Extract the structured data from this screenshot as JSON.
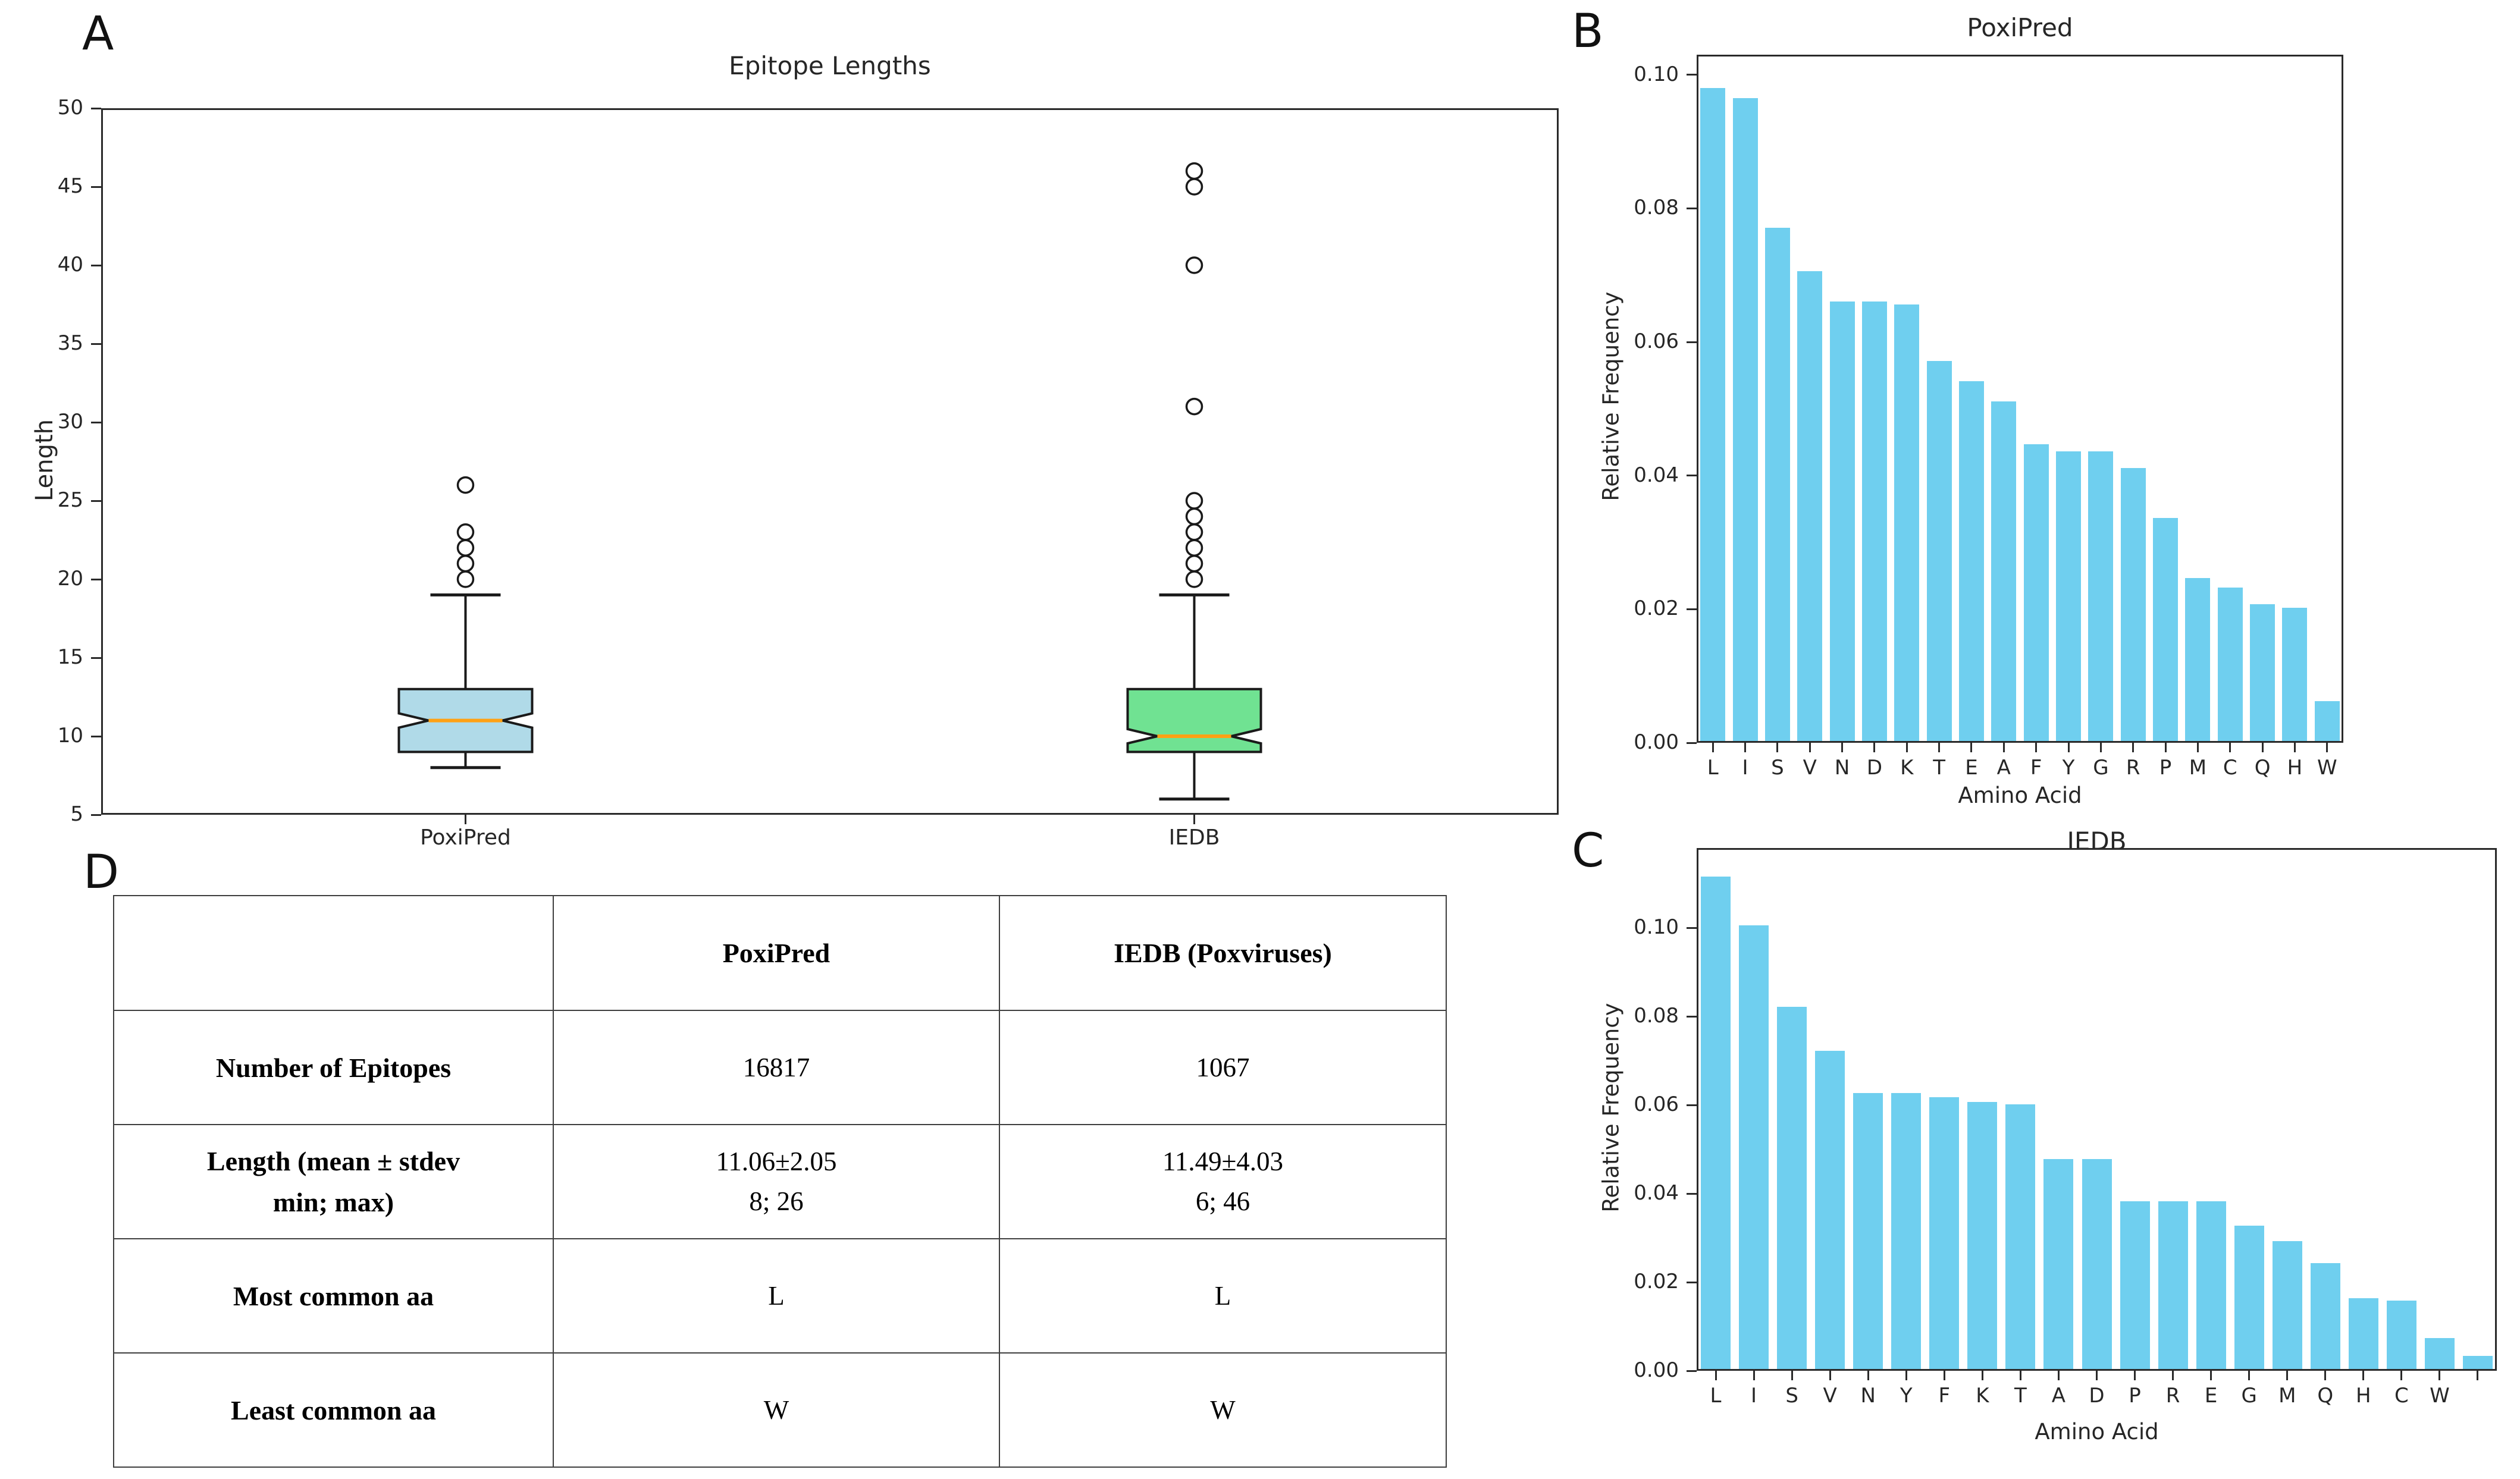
{
  "figure": {
    "background": "#ffffff"
  },
  "panel_labels": {
    "a": "A",
    "b": "B",
    "c": "C",
    "d": "D"
  },
  "chart_data": [
    {
      "id": "A",
      "type": "boxplot",
      "title": "Epitope Lengths",
      "xlabel": "",
      "ylabel": "Length",
      "ylim": [
        5,
        50
      ],
      "ytick_labels": [
        "5",
        "10",
        "15",
        "20",
        "25",
        "30",
        "35",
        "40",
        "45",
        "50"
      ],
      "grid": false,
      "legend": "none",
      "categories": [
        "PoxiPred",
        "IEDB"
      ],
      "median_color": "#FFA114",
      "edge_color": "#1a1a1a",
      "series": [
        {
          "name": "PoxiPred",
          "box_color": "#B0DAE8",
          "whisker_low": 8,
          "q1": 9,
          "median": 11,
          "q3": 13,
          "whisker_high": 19,
          "outliers": [
            20,
            21,
            22,
            23,
            26
          ]
        },
        {
          "name": "IEDB",
          "box_color": "#70E292",
          "whisker_low": 6,
          "q1": 9,
          "median": 10,
          "q3": 13,
          "whisker_high": 19,
          "outliers": [
            20,
            21,
            22,
            23,
            24,
            25,
            31,
            40,
            45,
            46
          ]
        }
      ]
    },
    {
      "id": "B",
      "type": "bar",
      "title": "PoxiPred",
      "xlabel": "Amino Acid",
      "ylabel": "Relative Frequency",
      "ylim": [
        0,
        0.103
      ],
      "ytick_labels": [
        "0.00",
        "0.02",
        "0.04",
        "0.06",
        "0.08",
        "0.10"
      ],
      "grid": false,
      "legend": "none",
      "bar_color": "#6FCFEF",
      "categories": [
        "L",
        "I",
        "S",
        "V",
        "N",
        "D",
        "K",
        "T",
        "E",
        "A",
        "F",
        "Y",
        "G",
        "R",
        "P",
        "M",
        "C",
        "Q",
        "H",
        "W"
      ],
      "values": [
        0.098,
        0.0965,
        0.077,
        0.0705,
        0.066,
        0.066,
        0.0655,
        0.057,
        0.054,
        0.051,
        0.0445,
        0.0435,
        0.0435,
        0.041,
        0.0335,
        0.0245,
        0.023,
        0.0205,
        0.02,
        0.006
      ]
    },
    {
      "id": "C",
      "type": "bar",
      "title": "IEDB",
      "xlabel": "Amino Acid",
      "ylabel": "Relative Frequency",
      "ylim": [
        0,
        0.118
      ],
      "ytick_labels": [
        "0.00",
        "0.02",
        "0.04",
        "0.06",
        "0.08",
        "0.10"
      ],
      "grid": false,
      "legend": "none",
      "bar_color": "#6FCFEF",
      "categories": [
        "L",
        "I",
        "S",
        "V",
        "N",
        "Y",
        "F",
        "K",
        "T",
        "A",
        "D",
        "P",
        "R",
        "E",
        "G",
        "M",
        "Q",
        "H",
        "C",
        "W",
        ""
      ],
      "values": [
        0.1115,
        0.1005,
        0.082,
        0.072,
        0.0625,
        0.0625,
        0.0615,
        0.0605,
        0.06,
        0.0475,
        0.0475,
        0.038,
        0.038,
        0.038,
        0.0325,
        0.029,
        0.024,
        0.016,
        0.0155,
        0.007,
        0.003
      ]
    },
    {
      "id": "D",
      "type": "table",
      "columns": [
        "",
        "PoxiPred",
        "IEDB (Poxviruses)"
      ],
      "rows": [
        {
          "label_lines": [
            "Number of Epitopes"
          ],
          "poxipred_lines": [
            "16817"
          ],
          "iedb_lines": [
            "1067"
          ]
        },
        {
          "label_lines": [
            "Length (mean ± stdev",
            "min; max)"
          ],
          "poxipred_lines": [
            "11.06±2.05",
            "8; 26"
          ],
          "iedb_lines": [
            "11.49±4.03",
            "6; 46"
          ]
        },
        {
          "label_lines": [
            "Most common aa"
          ],
          "poxipred_lines": [
            "L"
          ],
          "iedb_lines": [
            "L"
          ]
        },
        {
          "label_lines": [
            "Least common aa"
          ],
          "poxipred_lines": [
            "W"
          ],
          "iedb_lines": [
            "W"
          ]
        }
      ]
    }
  ]
}
